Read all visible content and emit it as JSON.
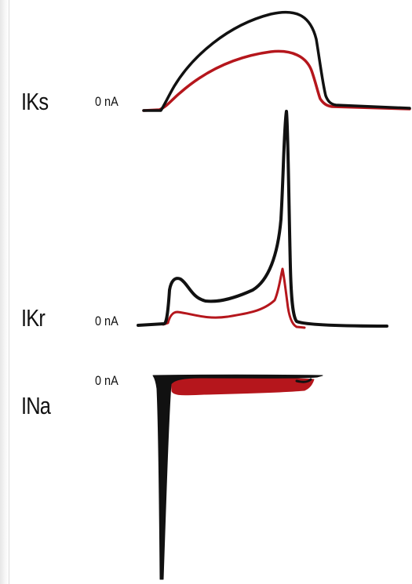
{
  "panels": [
    {
      "id": "iks",
      "label": "IKs",
      "zero_label": "0 nA"
    },
    {
      "id": "ikr",
      "label": "IKr",
      "zero_label": "0 nA"
    },
    {
      "id": "ina",
      "label": "INa",
      "zero_label": "0 nA"
    }
  ],
  "colors": {
    "control": "#111111",
    "drug": "#b5161c",
    "text": "#111111"
  }
}
